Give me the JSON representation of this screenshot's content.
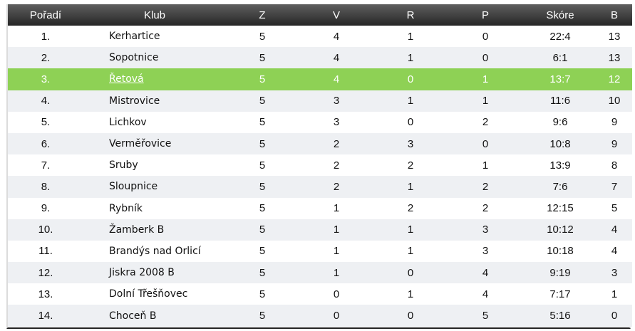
{
  "table": {
    "columns": [
      "Pořadí",
      "Klub",
      "Z",
      "V",
      "R",
      "P",
      "Skóre",
      "B"
    ],
    "highlight_color": "#8ed155",
    "header_color": "#3a3a3a",
    "highlight_row_index": 2,
    "rows": [
      {
        "rank": "1.",
        "club": "Kerhartice",
        "z": "5",
        "v": "4",
        "r": "1",
        "p": "0",
        "score": "22:4",
        "b": "13"
      },
      {
        "rank": "2.",
        "club": "Sopotnice",
        "z": "5",
        "v": "4",
        "r": "1",
        "p": "0",
        "score": "6:1",
        "b": "13"
      },
      {
        "rank": "3.",
        "club": "Řetová",
        "z": "5",
        "v": "4",
        "r": "0",
        "p": "1",
        "score": "13:7",
        "b": "12"
      },
      {
        "rank": "4.",
        "club": "Mistrovice",
        "z": "5",
        "v": "3",
        "r": "1",
        "p": "1",
        "score": "11:6",
        "b": "10"
      },
      {
        "rank": "5.",
        "club": "Lichkov",
        "z": "5",
        "v": "3",
        "r": "0",
        "p": "2",
        "score": "9:6",
        "b": "9"
      },
      {
        "rank": "6.",
        "club": "Verměřovice",
        "z": "5",
        "v": "2",
        "r": "3",
        "p": "0",
        "score": "10:8",
        "b": "9"
      },
      {
        "rank": "7.",
        "club": "Sruby",
        "z": "5",
        "v": "2",
        "r": "2",
        "p": "1",
        "score": "13:9",
        "b": "8"
      },
      {
        "rank": "8.",
        "club": "Sloupnice",
        "z": "5",
        "v": "2",
        "r": "1",
        "p": "2",
        "score": "7:6",
        "b": "7"
      },
      {
        "rank": "9.",
        "club": "Rybník",
        "z": "5",
        "v": "1",
        "r": "2",
        "p": "2",
        "score": "12:15",
        "b": "5"
      },
      {
        "rank": "10.",
        "club": "Žamberk B",
        "z": "5",
        "v": "1",
        "r": "1",
        "p": "3",
        "score": "10:12",
        "b": "4"
      },
      {
        "rank": "11.",
        "club": "Brandýs nad Orlicí",
        "z": "5",
        "v": "1",
        "r": "1",
        "p": "3",
        "score": "10:18",
        "b": "4"
      },
      {
        "rank": "12.",
        "club": "Jiskra 2008 B",
        "z": "5",
        "v": "1",
        "r": "0",
        "p": "4",
        "score": "9:19",
        "b": "3"
      },
      {
        "rank": "13.",
        "club": "Dolní Třešňovec",
        "z": "5",
        "v": "0",
        "r": "1",
        "p": "4",
        "score": "7:17",
        "b": "1"
      },
      {
        "rank": "14.",
        "club": "Choceň B",
        "z": "5",
        "v": "0",
        "r": "0",
        "p": "5",
        "score": "5:16",
        "b": "0"
      }
    ]
  }
}
